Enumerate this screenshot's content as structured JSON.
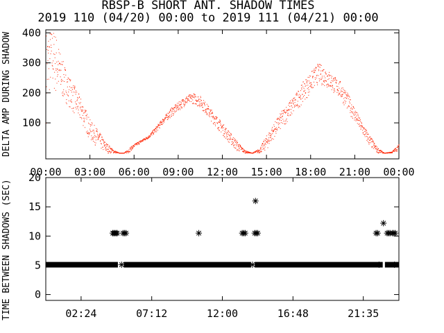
{
  "title": "RBSP-B SHORT ANT. SHADOW TIMES",
  "subtitle": "2019 110 (04/20) 00:00 to 2019 111 (04/21) 00:00",
  "colors": {
    "series": "#ff2200",
    "axis": "#000000",
    "background": "#ffffff"
  },
  "chart_data": [
    {
      "type": "scatter",
      "ylabel": "DELTA AMP DURING SHADOW",
      "xlim": [
        0,
        24
      ],
      "ylim": [
        0,
        400
      ],
      "xticks": [
        "00:00",
        "03:00",
        "06:00",
        "09:00",
        "12:00",
        "15:00",
        "18:00",
        "21:00",
        "00:00"
      ],
      "xtick_hours": [
        0,
        3,
        6,
        9,
        12,
        15,
        18,
        21,
        24
      ],
      "yticks": [
        100,
        200,
        300,
        400
      ],
      "grid": false,
      "envelope": {
        "x_hours": [
          0,
          0.3,
          0.6,
          1.0,
          1.5,
          2.0,
          2.5,
          3.0,
          3.5,
          4.0,
          4.3,
          4.6,
          5.0,
          5.3,
          5.6,
          6.0,
          6.5,
          7.0,
          7.5,
          8.0,
          8.5,
          9.0,
          9.5,
          10.0,
          10.5,
          11.0,
          11.5,
          12.0,
          12.5,
          13.0,
          13.5,
          14.0,
          14.5,
          15.0,
          15.5,
          16.0,
          16.5,
          17.0,
          17.5,
          18.0,
          18.5,
          19.0,
          19.5,
          20.0,
          20.5,
          21.0,
          21.5,
          22.0,
          22.5,
          23.0,
          23.5,
          24.0
        ],
        "low": [
          100,
          220,
          190,
          180,
          160,
          120,
          90,
          40,
          20,
          0,
          0,
          0,
          0,
          0,
          0,
          20,
          35,
          50,
          70,
          100,
          120,
          140,
          160,
          165,
          150,
          120,
          90,
          60,
          30,
          5,
          0,
          0,
          0,
          10,
          50,
          80,
          110,
          140,
          170,
          200,
          230,
          220,
          200,
          180,
          140,
          100,
          60,
          20,
          0,
          0,
          0,
          10
        ],
        "high": [
          410,
          410,
          410,
          330,
          260,
          220,
          170,
          110,
          80,
          40,
          25,
          10,
          0,
          0,
          15,
          30,
          45,
          60,
          90,
          120,
          150,
          170,
          190,
          200,
          190,
          160,
          130,
          100,
          70,
          40,
          10,
          0,
          15,
          60,
          100,
          140,
          170,
          200,
          240,
          270,
          300,
          285,
          260,
          240,
          200,
          150,
          100,
          60,
          20,
          0,
          5,
          30
        ]
      }
    },
    {
      "type": "scatter",
      "ylabel": "TIME BETWEEN SHADOWS (SEC)",
      "xlim": [
        0,
        24
      ],
      "ylim": [
        0,
        20
      ],
      "xticks": [
        "02:24",
        "07:12",
        "12:00",
        "16:48",
        "21:35"
      ],
      "xtick_hours": [
        2.4,
        7.2,
        12.0,
        16.8,
        21.58
      ],
      "yticks": [
        0,
        5,
        10,
        15,
        20
      ],
      "grid": false,
      "marker": "*",
      "baseline": {
        "value": 5.1,
        "x_start": 0,
        "x_end": 24,
        "gaps": [
          [
            4.9,
            5.3
          ],
          [
            13.95,
            14.2
          ],
          [
            22.9,
            23.05
          ]
        ]
      },
      "points": [
        {
          "x": 4.55,
          "y": 10.5
        },
        {
          "x": 4.62,
          "y": 10.5
        },
        {
          "x": 4.7,
          "y": 10.5
        },
        {
          "x": 4.78,
          "y": 10.5
        },
        {
          "x": 4.86,
          "y": 10.5
        },
        {
          "x": 5.25,
          "y": 10.5
        },
        {
          "x": 5.35,
          "y": 10.5
        },
        {
          "x": 5.45,
          "y": 10.5
        },
        {
          "x": 5.15,
          "y": 5.1
        },
        {
          "x": 10.4,
          "y": 10.5
        },
        {
          "x": 13.35,
          "y": 10.5
        },
        {
          "x": 13.45,
          "y": 10.5
        },
        {
          "x": 13.55,
          "y": 10.5
        },
        {
          "x": 14.05,
          "y": 5.1
        },
        {
          "x": 14.2,
          "y": 10.5
        },
        {
          "x": 14.3,
          "y": 10.5
        },
        {
          "x": 14.4,
          "y": 10.5
        },
        {
          "x": 14.25,
          "y": 16.0
        },
        {
          "x": 22.45,
          "y": 10.5
        },
        {
          "x": 22.55,
          "y": 10.5
        },
        {
          "x": 22.65,
          "y": 5.1
        },
        {
          "x": 22.95,
          "y": 12.2
        },
        {
          "x": 23.2,
          "y": 10.5
        },
        {
          "x": 23.3,
          "y": 10.5
        },
        {
          "x": 23.4,
          "y": 10.5
        },
        {
          "x": 23.55,
          "y": 10.5
        },
        {
          "x": 23.65,
          "y": 10.5
        },
        {
          "x": 23.75,
          "y": 10.5
        },
        {
          "x": 23.7,
          "y": 5.1
        }
      ]
    }
  ]
}
